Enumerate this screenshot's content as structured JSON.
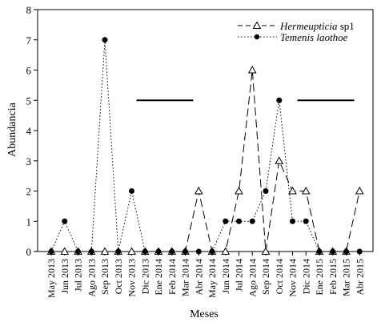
{
  "chart_data": {
    "type": "line",
    "xlabel": "Meses",
    "ylabel": "Abundancia",
    "ylim": [
      0,
      8
    ],
    "yticks": [
      0,
      1,
      2,
      3,
      4,
      5,
      6,
      7,
      8
    ],
    "grid": false,
    "legend_position": "top-right",
    "categories": [
      "May 2013",
      "Jun 2013",
      "Jul 2013",
      "Ago 2013",
      "Sep 2013",
      "Oct 2013",
      "Nov 2013",
      "Dic 2013",
      "Ene 2014",
      "Feb 2014",
      "Mar 2014",
      "Abr 2014",
      "May 2014",
      "Jun 2014",
      "Jul 2014",
      "Ago 2014",
      "Sep 2014",
      "Oct 2014",
      "Nov 2014",
      "Dic 2014",
      "Ene 2015",
      "Feb 2015",
      "Mar 2015",
      "Abr 2015"
    ],
    "series": [
      {
        "name_italic": "Hermeupticia",
        "name_rest": " sp1",
        "marker": "triangle-open",
        "line_style": "dashed",
        "values": [
          0,
          0,
          0,
          0,
          0,
          0,
          0,
          0,
          0,
          0,
          0,
          2,
          0,
          0,
          2,
          6,
          0,
          3,
          2,
          2,
          0,
          0,
          0,
          2
        ]
      },
      {
        "name_italic": "Temenis laothoe",
        "name_rest": "",
        "marker": "circle-filled",
        "line_style": "dotted",
        "values": [
          0,
          1,
          0,
          0,
          7,
          0,
          2,
          0,
          0,
          0,
          0,
          0,
          0,
          1,
          1,
          1,
          2,
          5,
          1,
          1,
          0,
          0,
          0,
          0
        ]
      }
    ],
    "annotations": [
      {
        "type": "horizontal-bar",
        "x_start": "Nov 2013",
        "x_end": "Mar 2014",
        "y": 5
      },
      {
        "type": "horizontal-bar",
        "x_start": "Nov 2014",
        "x_end": "Mar 2015",
        "y": 5
      }
    ]
  }
}
